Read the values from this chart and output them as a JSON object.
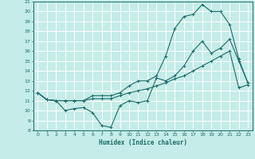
{
  "xlabel": "Humidex (Indice chaleur)",
  "xlim": [
    -0.5,
    23.5
  ],
  "ylim": [
    8,
    21
  ],
  "xticks": [
    0,
    1,
    2,
    3,
    4,
    5,
    6,
    7,
    8,
    9,
    10,
    11,
    12,
    13,
    14,
    15,
    16,
    17,
    18,
    19,
    20,
    21,
    22,
    23
  ],
  "yticks": [
    8,
    9,
    10,
    11,
    12,
    13,
    14,
    15,
    16,
    17,
    18,
    19,
    20,
    21
  ],
  "bg_color": "#c5ece8",
  "line_color": "#1a6b6b",
  "grid_color": "#ffffff",
  "line1_x": [
    0,
    1,
    2,
    3,
    4,
    5,
    6,
    7,
    8,
    9,
    10,
    11,
    12,
    13,
    14,
    15,
    16,
    17,
    18,
    19,
    20,
    21,
    22,
    23
  ],
  "line1_y": [
    11.8,
    11.1,
    11.0,
    10.0,
    10.2,
    10.3,
    9.8,
    8.5,
    8.3,
    10.5,
    11.0,
    10.8,
    11.0,
    13.3,
    13.0,
    13.5,
    14.5,
    16.0,
    17.0,
    15.8,
    16.3,
    17.2,
    15.0,
    12.8
  ],
  "line2_x": [
    0,
    1,
    2,
    3,
    4,
    5,
    6,
    7,
    8,
    9,
    10,
    11,
    12,
    13,
    14,
    15,
    16,
    17,
    18,
    19,
    20,
    21,
    22,
    23
  ],
  "line2_y": [
    11.8,
    11.1,
    11.0,
    11.0,
    11.0,
    11.0,
    11.2,
    11.2,
    11.2,
    11.5,
    11.8,
    12.0,
    12.2,
    12.5,
    12.8,
    13.2,
    13.5,
    14.0,
    14.5,
    15.0,
    15.5,
    16.0,
    12.3,
    12.6
  ],
  "line3_x": [
    0,
    1,
    2,
    3,
    4,
    5,
    6,
    7,
    8,
    9,
    10,
    11,
    12,
    13,
    14,
    15,
    16,
    17,
    18,
    19,
    20,
    21,
    22,
    23
  ],
  "line3_y": [
    11.8,
    11.1,
    11.0,
    11.0,
    11.0,
    11.0,
    11.5,
    11.5,
    11.5,
    11.8,
    12.5,
    13.0,
    13.0,
    13.5,
    15.5,
    18.3,
    19.5,
    19.7,
    20.7,
    20.0,
    20.0,
    18.7,
    15.2,
    12.8
  ]
}
